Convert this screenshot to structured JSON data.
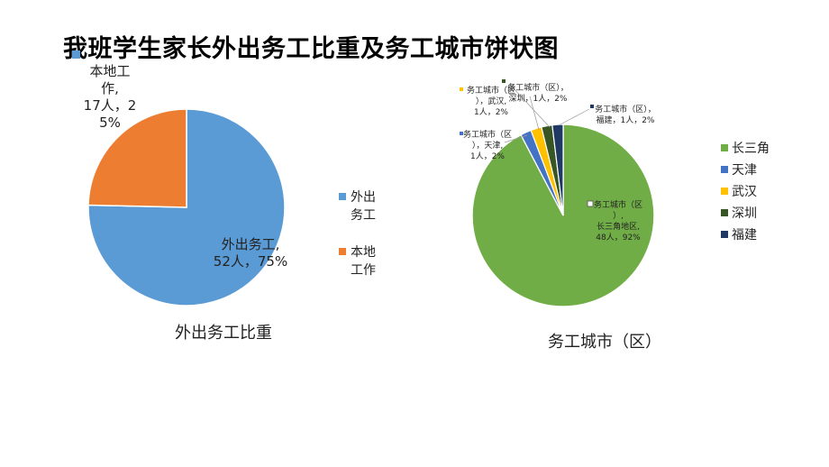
{
  "page": {
    "title": "我班学生家长外出务工比重及务工城市饼状图"
  },
  "colors": {
    "blue": "#5B9BD5",
    "orange": "#ED7D31",
    "green": "#70AD47",
    "darkBlue": "#4472C4",
    "yellow": "#FFC000",
    "darkGreen": "#375623",
    "navy": "#1F3864"
  },
  "chart_data": [
    {
      "type": "pie",
      "title": "外出务工比重",
      "categories": [
        "外出务工",
        "本地工作"
      ],
      "values": [
        52,
        17
      ],
      "percents": [
        "75%",
        "25%"
      ],
      "legend": {
        "position": "right",
        "entries": [
          "外出务工",
          "本地工作"
        ]
      },
      "data_labels": [
        [
          "外出务工,",
          "52人，75%"
        ],
        [
          "本地工",
          "作,",
          "17人，2",
          "5%"
        ]
      ]
    },
    {
      "type": "pie",
      "title": "务工城市（区）",
      "categories": [
        "长三角",
        "天津",
        "武汉",
        "深圳",
        "福建"
      ],
      "values": [
        48,
        1,
        1,
        1,
        1
      ],
      "percents": [
        "92%",
        "2%",
        "2%",
        "2%",
        "2%"
      ],
      "legend": {
        "position": "right",
        "entries": [
          "长三角",
          "天津",
          "武汉",
          "深圳",
          "福建"
        ]
      },
      "data_labels": [
        [
          "务工城市（区",
          "）,",
          "长三角地区,",
          "48人，92%"
        ],
        [
          "务工城市（区",
          "），天津,",
          "1人，2%"
        ],
        [
          "务工城市（区",
          "），武汉,",
          "1人，2%"
        ],
        [
          "务工城市（区），",
          "深圳，1人，2%"
        ],
        [
          "务工城市（区），",
          "福建，1人，2%"
        ]
      ]
    }
  ]
}
